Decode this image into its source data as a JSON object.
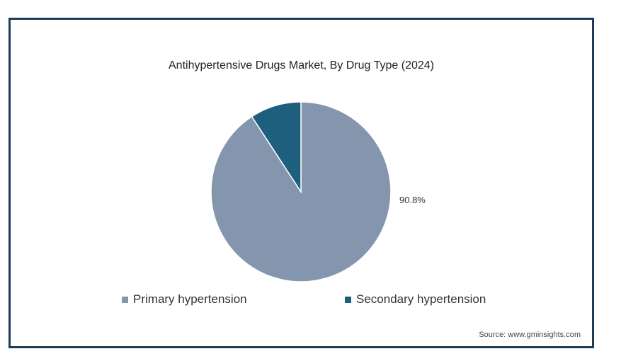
{
  "chart_data": {
    "type": "pie",
    "title": "Antihypertensive Drugs Market, By Drug Type (2024)",
    "slices": [
      {
        "label": "Primary hypertension",
        "value": 90.8,
        "color": "#8496ae",
        "data_label": "90.8%"
      },
      {
        "label": "Secondary hypertension",
        "value": 9.2,
        "color": "#1f5f7e",
        "data_label": ""
      }
    ],
    "legend_position": "bottom"
  },
  "source": "Source: www.gminsights.com"
}
